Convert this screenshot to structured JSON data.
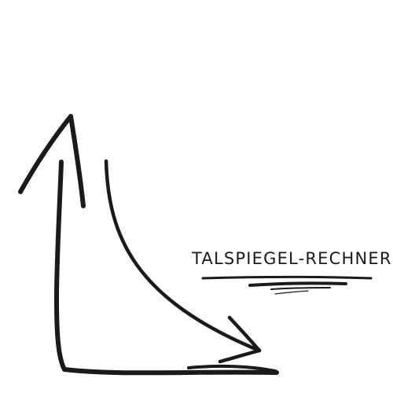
{
  "brand": {
    "title": "TALSPIEGEL-RECHNER"
  },
  "colors": {
    "ink": "#1a1a1a",
    "background": "#ffffff"
  },
  "icons": {
    "axis": "hand-drawn-axis-arrows-icon",
    "curve": "decay-curve-arrow-icon",
    "underline": "brush-underline-stroke"
  }
}
